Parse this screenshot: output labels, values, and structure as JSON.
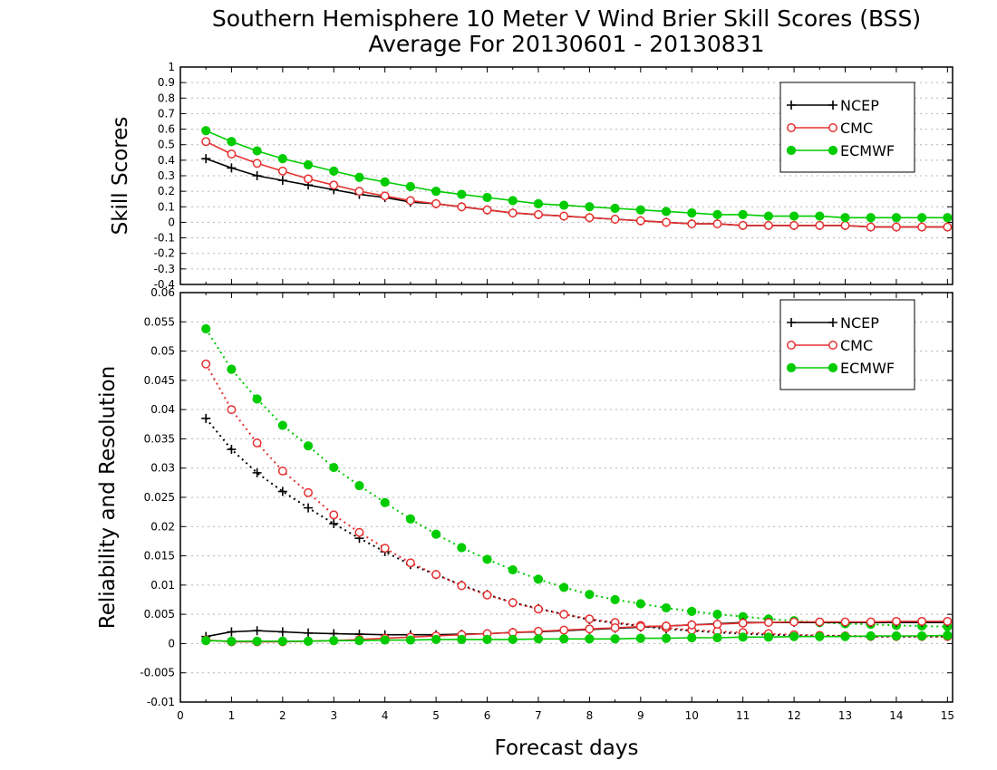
{
  "title_line1": "Southern Hemisphere 10 Meter V Wind Brier Skill Scores (BSS)",
  "title_line2": "Average For 20130601 - 20130831",
  "colors": {
    "NCEP": "#000000",
    "CMC": "#e63030",
    "ECMWF": "#00cc00",
    "grid": "#b4b4b4"
  },
  "chart_data": [
    {
      "type": "line",
      "ylabel": "Skill Scores",
      "xlabel": "",
      "xlim": [
        0,
        15.1
      ],
      "ylim": [
        -0.4,
        1
      ],
      "xticks": [
        0,
        1,
        2,
        3,
        4,
        5,
        6,
        7,
        8,
        9,
        10,
        11,
        12,
        13,
        14,
        15
      ],
      "yticks": [
        -0.4,
        -0.3,
        -0.2,
        -0.1,
        0,
        0.1,
        0.2,
        0.3,
        0.4,
        0.5,
        0.6,
        0.7,
        0.8,
        0.9,
        1
      ],
      "ytick_labels": [
        "-0.4",
        "-0.3",
        "-0.2",
        "-0.1",
        "0",
        "0.1",
        "0.2",
        "0.3",
        "0.4",
        "0.5",
        "0.6",
        "0.7",
        "0.8",
        "0.9",
        "1"
      ],
      "grid": true,
      "legend_position": "top-right",
      "x": [
        0.5,
        1,
        1.5,
        2,
        2.5,
        3,
        3.5,
        4,
        4.5,
        5,
        5.5,
        6,
        6.5,
        7,
        7.5,
        8,
        8.5,
        9,
        9.5,
        10,
        10.5,
        11,
        11.5,
        12,
        12.5,
        13,
        13.5,
        14,
        14.5,
        15
      ],
      "series": [
        {
          "name": "NCEP",
          "marker": "plus",
          "style": "solid",
          "values": [
            0.41,
            0.35,
            0.3,
            0.27,
            0.24,
            0.21,
            0.18,
            0.16,
            0.13,
            0.12,
            0.1,
            0.08,
            0.06,
            0.05,
            0.04,
            0.03,
            0.02,
            0.01,
            0.0,
            -0.01,
            -0.01,
            -0.02,
            -0.02,
            -0.02,
            -0.02,
            -0.02,
            -0.03,
            -0.03,
            -0.03,
            -0.03
          ]
        },
        {
          "name": "CMC",
          "marker": "open-circle",
          "style": "solid",
          "values": [
            0.52,
            0.44,
            0.38,
            0.33,
            0.28,
            0.24,
            0.2,
            0.17,
            0.14,
            0.12,
            0.1,
            0.08,
            0.06,
            0.05,
            0.04,
            0.03,
            0.02,
            0.01,
            0.0,
            -0.01,
            -0.01,
            -0.02,
            -0.02,
            -0.02,
            -0.02,
            -0.02,
            -0.03,
            -0.03,
            -0.03,
            -0.03
          ]
        },
        {
          "name": "ECMWF",
          "marker": "filled-circle",
          "style": "solid",
          "values": [
            0.59,
            0.52,
            0.46,
            0.41,
            0.37,
            0.33,
            0.29,
            0.26,
            0.23,
            0.2,
            0.18,
            0.16,
            0.14,
            0.12,
            0.11,
            0.1,
            0.09,
            0.08,
            0.07,
            0.06,
            0.05,
            0.05,
            0.04,
            0.04,
            0.04,
            0.03,
            0.03,
            0.03,
            0.03,
            0.03
          ]
        }
      ]
    },
    {
      "type": "line",
      "ylabel": "Reliability and Resolution",
      "xlabel": "Forecast days",
      "xlim": [
        0,
        15.1
      ],
      "ylim": [
        -0.01,
        0.06
      ],
      "xticks": [
        0,
        1,
        2,
        3,
        4,
        5,
        6,
        7,
        8,
        9,
        10,
        11,
        12,
        13,
        14,
        15
      ],
      "yticks": [
        -0.01,
        -0.005,
        0,
        0.005,
        0.01,
        0.015,
        0.02,
        0.025,
        0.03,
        0.035,
        0.04,
        0.045,
        0.05,
        0.055,
        0.06
      ],
      "ytick_labels": [
        "-0.01",
        "-0.005",
        "0",
        "0.005",
        "0.01",
        "0.015",
        "0.02",
        "0.025",
        "0.03",
        "0.035",
        "0.04",
        "0.045",
        "0.05",
        "0.055",
        "0.06"
      ],
      "grid": true,
      "legend_position": "top-right",
      "x": [
        0.5,
        1,
        1.5,
        2,
        2.5,
        3,
        3.5,
        4,
        4.5,
        5,
        5.5,
        6,
        6.5,
        7,
        7.5,
        8,
        8.5,
        9,
        9.5,
        10,
        10.5,
        11,
        11.5,
        12,
        12.5,
        13,
        13.5,
        14,
        14.5,
        15
      ],
      "series": [
        {
          "name": "NCEP",
          "metric": "resolution",
          "marker": "plus",
          "style": "dotted",
          "values": [
            0.0385,
            0.0332,
            0.0292,
            0.026,
            0.0232,
            0.0205,
            0.018,
            0.0157,
            0.0135,
            0.0118,
            0.01,
            0.0084,
            0.007,
            0.006,
            0.005,
            0.0041,
            0.0035,
            0.003,
            0.0025,
            0.0022,
            0.0019,
            0.0017,
            0.0015,
            0.0014,
            0.0013,
            0.0013,
            0.0012,
            0.0012,
            0.0012,
            0.0012
          ]
        },
        {
          "name": "CMC",
          "metric": "resolution",
          "marker": "open-circle",
          "style": "dotted",
          "values": [
            0.0478,
            0.04,
            0.0343,
            0.0295,
            0.0258,
            0.022,
            0.019,
            0.0163,
            0.0138,
            0.0118,
            0.0099,
            0.0083,
            0.007,
            0.0059,
            0.005,
            0.0042,
            0.0036,
            0.0031,
            0.0027,
            0.0023,
            0.0021,
            0.0019,
            0.0017,
            0.0015,
            0.0014,
            0.0013,
            0.0012,
            0.0012,
            0.0012,
            0.0012
          ]
        },
        {
          "name": "ECMWF",
          "metric": "resolution",
          "marker": "filled-circle",
          "style": "dotted",
          "values": [
            0.0538,
            0.0469,
            0.0418,
            0.0373,
            0.0338,
            0.0301,
            0.027,
            0.0241,
            0.0213,
            0.0187,
            0.0164,
            0.0144,
            0.0126,
            0.011,
            0.0096,
            0.0084,
            0.0075,
            0.0068,
            0.0061,
            0.0055,
            0.005,
            0.0046,
            0.0042,
            0.0039,
            0.0036,
            0.0034,
            0.0033,
            0.0031,
            0.003,
            0.0029
          ]
        },
        {
          "name": "NCEP",
          "metric": "reliability",
          "marker": "plus",
          "style": "solid",
          "values": [
            0.0012,
            0.002,
            0.0022,
            0.002,
            0.0018,
            0.0017,
            0.0016,
            0.0015,
            0.0015,
            0.0015,
            0.0016,
            0.0017,
            0.0019,
            0.002,
            0.0022,
            0.0024,
            0.0026,
            0.0028,
            0.003,
            0.0032,
            0.0034,
            0.0036,
            0.0036,
            0.0036,
            0.0036,
            0.0036,
            0.0036,
            0.0036,
            0.0036,
            0.0036
          ]
        },
        {
          "name": "CMC",
          "metric": "reliability",
          "marker": "open-circle",
          "style": "solid",
          "values": [
            0.0006,
            0.0003,
            0.0003,
            0.0003,
            0.0004,
            0.0005,
            0.0007,
            0.0009,
            0.0011,
            0.0013,
            0.0015,
            0.0017,
            0.0019,
            0.0021,
            0.0023,
            0.0025,
            0.0027,
            0.0029,
            0.003,
            0.0032,
            0.0033,
            0.0035,
            0.0036,
            0.0037,
            0.0037,
            0.0037,
            0.0037,
            0.0038,
            0.0038,
            0.0038
          ]
        },
        {
          "name": "ECMWF",
          "metric": "reliability",
          "marker": "filled-circle",
          "style": "solid",
          "values": [
            0.0005,
            0.0004,
            0.0004,
            0.0004,
            0.0004,
            0.0005,
            0.0005,
            0.0006,
            0.0006,
            0.0007,
            0.0007,
            0.0007,
            0.0007,
            0.0008,
            0.0008,
            0.0008,
            0.0008,
            0.0009,
            0.0009,
            0.001,
            0.001,
            0.0011,
            0.0011,
            0.0012,
            0.0012,
            0.0012,
            0.0013,
            0.0013,
            0.0013,
            0.0014
          ]
        }
      ]
    }
  ]
}
